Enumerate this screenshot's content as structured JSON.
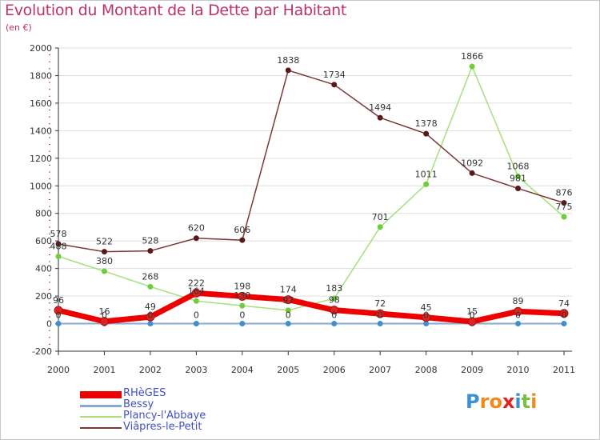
{
  "title": "Evolution du Montant de la Dette par Habitant",
  "unit_label": "(en €)",
  "colors": {
    "title": "#c0306a",
    "axis": "#333333",
    "grid": "#dddddd",
    "legend_text": "#4050c8",
    "label_text": "#333333"
  },
  "chart_data": {
    "type": "line",
    "title": "Evolution du Montant de la Dette par Habitant",
    "subtitle": "(en €)",
    "xlabel": "",
    "ylabel": "",
    "x": [
      "2000",
      "2001",
      "2002",
      "2003",
      "2004",
      "2005",
      "2006",
      "2007",
      "2008",
      "2009",
      "2010",
      "2011"
    ],
    "ylim": [
      -200,
      2000
    ],
    "yticks": [
      -200,
      0,
      200,
      400,
      600,
      800,
      1000,
      1200,
      1400,
      1600,
      1800,
      2000
    ],
    "ytick_labels": [
      "-200",
      "0",
      "200",
      "400",
      "600",
      "800",
      "1000",
      "1200",
      "1400",
      "1600",
      "1800",
      "2000"
    ],
    "grid": true,
    "legend_position": "bottom-left",
    "series": [
      {
        "name": "RHèGES",
        "color": "#ee0000",
        "marker": "#dd2222",
        "values": [
          96,
          16,
          49,
          222,
          198,
          174,
          98,
          72,
          45,
          15,
          89,
          74
        ],
        "labels": [
          "96",
          "16",
          "49",
          "222",
          "198",
          "174",
          "98",
          "72",
          "45",
          "15",
          "89",
          "74"
        ]
      },
      {
        "name": "Bessy",
        "color": "#88aad0",
        "marker": "#3f8fd0",
        "values": [
          0,
          0,
          0,
          0,
          0,
          0,
          0,
          0,
          0,
          0,
          0,
          0
        ],
        "labels": [
          "0",
          "0",
          "0",
          "0",
          "0",
          "0",
          "0",
          "0",
          "0",
          "0",
          "0",
          "0"
        ]
      },
      {
        "name": "Plancy-l'Abbaye",
        "color": "#a6e07a",
        "marker": "#6fcc3a",
        "values": [
          488,
          380,
          268,
          164,
          130,
          97,
          183,
          701,
          1011,
          1866,
          1068,
          775
        ],
        "labels": [
          "488",
          "380",
          "268",
          "164",
          "130",
          "97",
          "183",
          "701",
          "1011",
          "1866",
          "1068",
          "775"
        ]
      },
      {
        "name": "Viâpres-le-Petit",
        "color": "#7a3838",
        "marker": "#5a1818",
        "values": [
          578,
          522,
          528,
          620,
          606,
          1838,
          1734,
          1494,
          1378,
          1092,
          981,
          876
        ],
        "labels": [
          "578",
          "522",
          "528",
          "620",
          "606",
          "1838",
          "1734",
          "1494",
          "1378",
          "1092",
          "981",
          "876"
        ]
      }
    ]
  },
  "legend": {
    "items": [
      {
        "label": "RHèGES",
        "color": "#ee0000"
      },
      {
        "label": "Bessy",
        "color": "#88aad0"
      },
      {
        "label": "Plancy-l'Abbaye",
        "color": "#a6e07a"
      },
      {
        "label": "Viâpres-le-Petit",
        "color": "#7a3838"
      }
    ]
  },
  "logo": {
    "text": "Proxiti",
    "letters": [
      "P",
      "r",
      "o",
      "x",
      "i",
      "t",
      "i"
    ],
    "colors": [
      "#3c8fd6",
      "#f08a1c",
      "#f08a1c",
      "#e02020",
      "#3c8fd6",
      "#7ac142",
      "#f08a1c"
    ]
  }
}
